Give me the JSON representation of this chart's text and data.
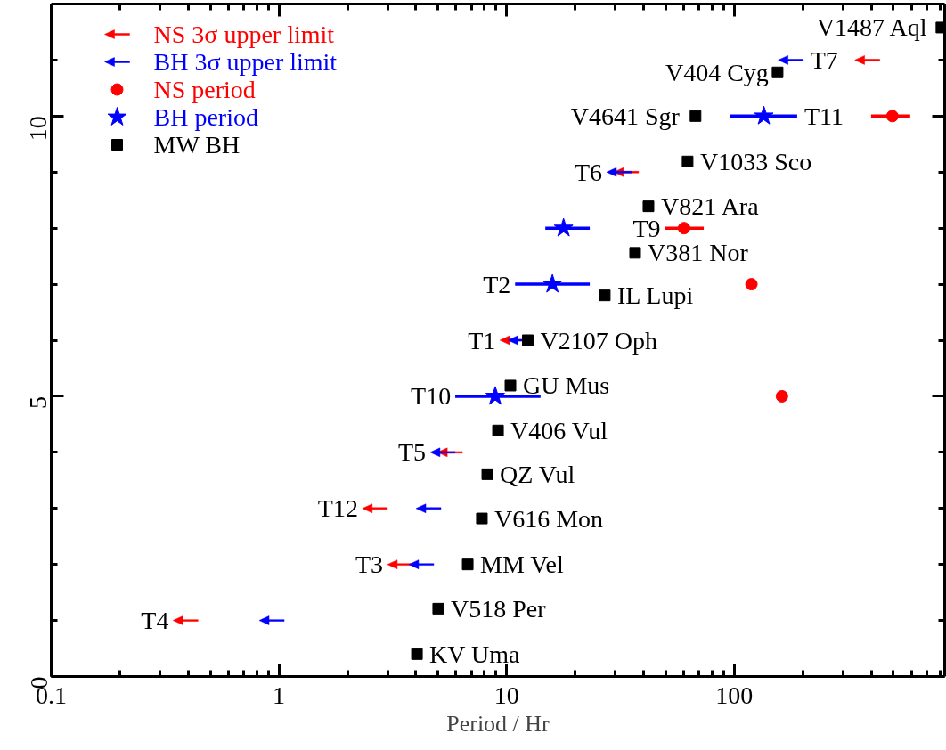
{
  "chart_data": {
    "type": "scatter",
    "xlabel": "Period / Hr",
    "log": "x",
    "grid": false,
    "legend": "top left",
    "xlim": [
      0.1,
      840
    ],
    "ylim": [
      0,
      12
    ],
    "xticks": [
      0.1,
      {
        "value": 0.2,
        "label": null
      },
      {
        "value": 0.3,
        "label": null
      },
      {
        "value": 0.4,
        "label": null
      },
      {
        "value": 0.5,
        "label": null
      },
      {
        "value": 0.6,
        "label": null
      },
      {
        "value": 0.7,
        "label": null
      },
      {
        "value": 0.8,
        "label": null
      },
      {
        "value": 0.9,
        "label": null
      },
      1,
      {
        "value": 2,
        "label": null
      },
      {
        "value": 3,
        "label": null
      },
      {
        "value": 4,
        "label": null
      },
      {
        "value": 5,
        "label": null
      },
      {
        "value": 6,
        "label": null
      },
      {
        "value": 7,
        "label": null
      },
      {
        "value": 8,
        "label": null
      },
      {
        "value": 9,
        "label": null
      },
      10,
      {
        "value": 20,
        "label": null
      },
      {
        "value": 30,
        "label": null
      },
      {
        "value": 40,
        "label": null
      },
      {
        "value": 50,
        "label": null
      },
      {
        "value": 60,
        "label": null
      },
      {
        "value": 70,
        "label": null
      },
      {
        "value": 80,
        "label": null
      },
      {
        "value": 90,
        "label": null
      },
      100,
      {
        "value": 200,
        "label": null
      },
      {
        "value": 300,
        "label": null
      },
      {
        "value": 400,
        "label": null
      },
      {
        "value": 500,
        "label": null
      },
      {
        "value": 600,
        "label": null
      },
      {
        "value": 700,
        "label": null
      },
      {
        "value": 800,
        "label": null
      }
    ],
    "yticks": [
      0,
      {
        "value": 1,
        "label": null
      },
      {
        "value": 2,
        "label": null
      },
      {
        "value": 3,
        "label": null
      },
      {
        "value": 4,
        "label": null
      },
      5,
      {
        "value": 6,
        "label": null
      },
      {
        "value": 7,
        "label": null
      },
      {
        "value": 8,
        "label": null
      },
      {
        "value": 9,
        "label": null
      },
      10,
      {
        "value": 11,
        "label": null
      }
    ],
    "series": [
      {
        "name": "NS 3σ upper limit",
        "color": "#ff0000",
        "marker": "triangle",
        "x": [
          384,
          33.5,
          10.6,
          5.64,
          2.64,
          3.4,
          0.389
        ],
        "values": [
          11,
          9,
          6,
          4,
          3,
          2,
          1
        ]
      },
      {
        "name": "BH 3σ upper limit",
        "color": "#0000ff",
        "marker": "triangle",
        "x": [
          177,
          31.2,
          11.5,
          5.24,
          4.54,
          4.22,
          0.93
        ],
        "values": [
          11,
          9,
          6,
          4,
          3,
          2,
          1
        ]
      },
      {
        "name": "NS period",
        "color": "#ff0000",
        "marker": "circle",
        "x": [
          495,
          60.2,
          119,
          162
        ],
        "values": [
          10,
          8,
          7,
          5
        ],
        "xerrors": [
          [
            399,
            593
          ],
          [
            49.6,
            73.5
          ],
          null,
          null
        ]
      },
      {
        "name": "BH period",
        "color": "#0000ff",
        "marker": "star",
        "x": [
          135,
          17.8,
          15.9,
          8.92
        ],
        "values": [
          10,
          8,
          7,
          5
        ],
        "xerrors": [
          [
            96,
            189
          ],
          [
            14.8,
            23.2
          ],
          [
            10.9,
            23.2
          ],
          [
            5.95,
            14.1
          ]
        ]
      },
      {
        "name": "MW BH",
        "color": "#000000",
        "marker": "square",
        "x": [
          4.04,
          5.01,
          6.75,
          7.79,
          8.23,
          9.17,
          10.4,
          12.4,
          27,
          36.7,
          42.0,
          62.4,
          67.6,
          155,
          813
        ],
        "values": [
          0.4,
          1.21,
          2.0,
          2.82,
          3.61,
          4.39,
          5.19,
          6.0,
          6.8,
          7.56,
          8.39,
          9.19,
          10.0,
          10.78,
          11.58
        ],
        "value_labels": [
          "KV Uma",
          "V518 Per",
          "MM Vel",
          "V616 Mon",
          "QZ Vul",
          "V406 Vul",
          "GU Mus",
          "V2107 Oph",
          "IL Lupi",
          "V381 Nor",
          "V821 Ara",
          "V1033 Sco",
          "V4641 Sgr",
          "V404 Cyg",
          "V1487 Aql"
        ]
      }
    ],
    "annotations": [
      {
        "text": "T7",
        "x": 177,
        "y": 11
      },
      {
        "text": "T11",
        "x": 135,
        "y": 10
      },
      {
        "text": "T6",
        "x": 31.2,
        "y": 9
      },
      {
        "text": "T9",
        "x": 60.2,
        "y": 8
      },
      {
        "text": "T2",
        "x": 15.9,
        "y": 7
      },
      {
        "text": "T1",
        "x": 10.6,
        "y": 6
      },
      {
        "text": "T10",
        "x": 8.92,
        "y": 5
      },
      {
        "text": "T5",
        "x": 5.24,
        "y": 4
      },
      {
        "text": "T12",
        "x": 2.64,
        "y": 3
      },
      {
        "text": "T3",
        "x": 3.4,
        "y": 2
      },
      {
        "text": "T4",
        "x": 0.389,
        "y": 1
      }
    ]
  }
}
